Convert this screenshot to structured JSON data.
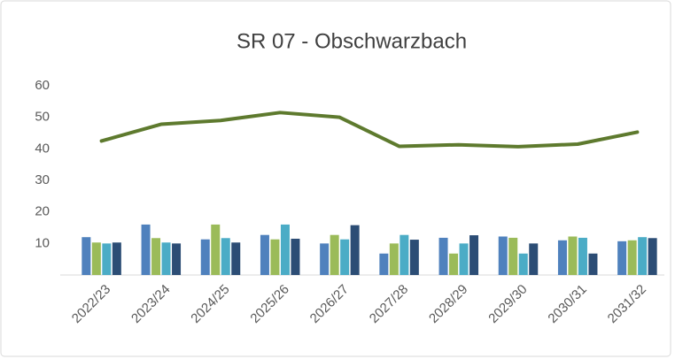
{
  "chart_data": {
    "type": "bar",
    "title": "SR 07 - Obschwarzbach",
    "categories": [
      "2022/23",
      "2023/24",
      "2024/25",
      "2025/26",
      "2026/27",
      "2027/28",
      "2028/29",
      "2029/30",
      "2030/31",
      "2031/32"
    ],
    "series": [
      {
        "color": "#4f81bd",
        "values": [
          12,
          16,
          11.3,
          12.7,
          10,
          6.8,
          11.8,
          12.2,
          11,
          10.7
        ]
      },
      {
        "color": "#9bbb59",
        "values": [
          10.3,
          11.7,
          16,
          11.3,
          12.7,
          10,
          6.8,
          11.8,
          12.2,
          11
        ]
      },
      {
        "color": "#4bacc6",
        "values": [
          10,
          10.3,
          11.7,
          16,
          11.3,
          12.7,
          10,
          6.8,
          11.8,
          12
        ]
      },
      {
        "color": "#2c4d75",
        "values": [
          10.3,
          10,
          10.3,
          11.5,
          15.8,
          11.2,
          12.6,
          10,
          6.8,
          11.7
        ]
      },
      {
        "type": "line",
        "color": "#5e7a2e",
        "values": [
          42.5,
          47.8,
          49,
          51.5,
          50,
          40.8,
          41.3,
          40.7,
          41.5,
          45.3
        ]
      }
    ],
    "ylim": [
      0,
      60
    ],
    "yticks": [
      10,
      20,
      30,
      40,
      50,
      60
    ],
    "grid": false
  }
}
